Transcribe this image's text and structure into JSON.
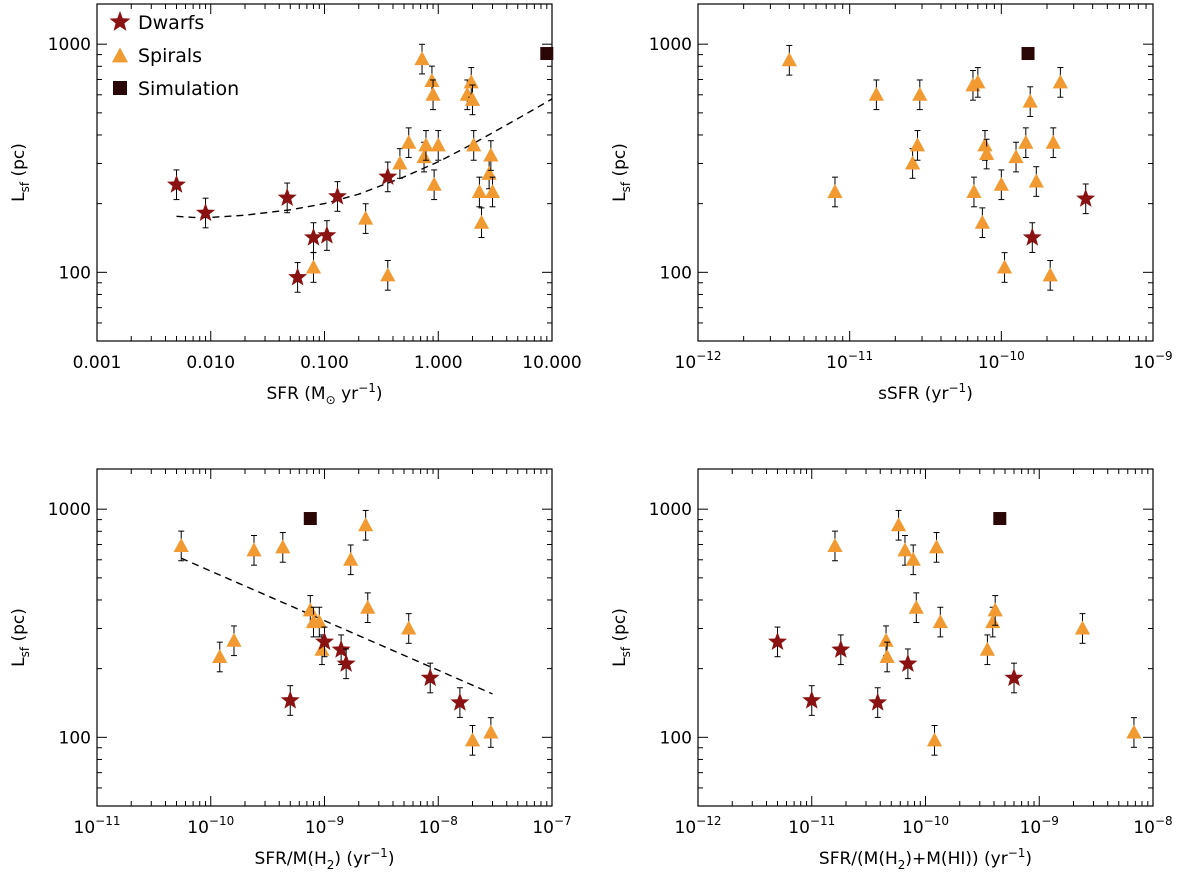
{
  "figure": {
    "legend": {
      "placement": "top-left",
      "entries": [
        {
          "label": "Dwarfs",
          "marker": "star",
          "color": "#8b1212"
        },
        {
          "label": "Spirals",
          "marker": "triangle",
          "color": "#f29a32"
        },
        {
          "label": "Simulation",
          "marker": "square",
          "color": "#2a0606"
        }
      ]
    },
    "colors": {
      "dwarf": "#8b1212",
      "spiral": "#f29a32",
      "simulation": "#2a0606",
      "errorbar": "#000000"
    }
  },
  "chart_data": [
    {
      "type": "scatter",
      "panel": "top-left",
      "xlabel": {
        "main": "SFR (M",
        "sub": "⊙",
        "tail": " yr",
        "sup": "−1",
        "close": ")"
      },
      "ylabel": {
        "main": "L",
        "sub": "sf",
        "tail": " (pc)"
      },
      "xscale": "log",
      "yscale": "log",
      "xlim": [
        0.001,
        10
      ],
      "ylim": [
        50,
        1500
      ],
      "xticks": [
        {
          "v": 0.001,
          "label": "0.001"
        },
        {
          "v": 0.01,
          "label": "0.010"
        },
        {
          "v": 0.1,
          "label": "0.100"
        },
        {
          "v": 1,
          "label": "1.000"
        },
        {
          "v": 10,
          "label": "10.000"
        }
      ],
      "yticks": [
        {
          "v": 100,
          "label": "100"
        },
        {
          "v": 1000,
          "label": "1000"
        }
      ],
      "fit_line": [
        [
          0.005,
          176
        ],
        [
          0.007,
          174
        ],
        [
          0.01,
          174
        ],
        [
          0.02,
          178
        ],
        [
          0.05,
          188
        ],
        [
          0.1,
          200
        ],
        [
          0.2,
          220
        ],
        [
          0.5,
          262
        ],
        [
          1,
          305
        ],
        [
          2,
          365
        ],
        [
          5,
          472
        ],
        [
          10,
          575
        ]
      ],
      "dwarfs": [
        [
          0.005,
          242
        ],
        [
          0.009,
          182
        ],
        [
          0.047,
          212
        ],
        [
          0.058,
          95
        ],
        [
          0.08,
          142
        ],
        [
          0.105,
          145
        ],
        [
          0.13,
          215
        ],
        [
          0.36,
          262
        ]
      ],
      "spirals": [
        [
          0.08,
          105
        ],
        [
          0.23,
          172
        ],
        [
          0.36,
          97
        ],
        [
          0.46,
          300
        ],
        [
          0.55,
          370
        ],
        [
          0.72,
          860
        ],
        [
          0.75,
          320
        ],
        [
          0.78,
          360
        ],
        [
          0.88,
          690
        ],
        [
          0.9,
          600
        ],
        [
          0.92,
          242
        ],
        [
          1.0,
          360
        ],
        [
          1.8,
          600
        ],
        [
          1.95,
          680
        ],
        [
          2.0,
          570
        ],
        [
          2.05,
          360
        ],
        [
          2.3,
          225
        ],
        [
          2.4,
          165
        ],
        [
          2.8,
          270
        ],
        [
          2.9,
          325
        ],
        [
          3.0,
          225
        ]
      ],
      "simulation": [
        [
          9,
          910
        ]
      ]
    },
    {
      "type": "scatter",
      "panel": "top-right",
      "xlabel": {
        "main": "sSFR (yr",
        "sup": "−1",
        "close": ")"
      },
      "ylabel": {
        "main": "L",
        "sub": "sf",
        "tail": " (pc)"
      },
      "xscale": "log",
      "yscale": "log",
      "xlim": [
        1e-12,
        1e-09
      ],
      "ylim": [
        50,
        1500
      ],
      "xticks": [
        {
          "v": 1e-12,
          "base": "10",
          "exp": "−12"
        },
        {
          "v": 1e-11,
          "base": "10",
          "exp": "−11"
        },
        {
          "v": 1e-10,
          "base": "10",
          "exp": "−10"
        },
        {
          "v": 1e-09,
          "base": "10",
          "exp": "−9"
        }
      ],
      "yticks": [
        {
          "v": 100,
          "label": "100"
        },
        {
          "v": 1000,
          "label": "1000"
        }
      ],
      "dwarfs": [
        [
          1.6e-10,
          142
        ],
        [
          3.6e-10,
          210
        ]
      ],
      "spirals": [
        [
          4e-12,
          850
        ],
        [
          8e-12,
          225
        ],
        [
          1.5e-11,
          600
        ],
        [
          2.6e-11,
          300
        ],
        [
          2.8e-11,
          360
        ],
        [
          2.9e-11,
          600
        ],
        [
          6.5e-11,
          660
        ],
        [
          6.6e-11,
          225
        ],
        [
          7e-11,
          680
        ],
        [
          7.5e-11,
          165
        ],
        [
          7.8e-11,
          360
        ],
        [
          8e-11,
          330
        ],
        [
          1e-10,
          242
        ],
        [
          1.05e-10,
          105
        ],
        [
          1.25e-10,
          320
        ],
        [
          1.45e-10,
          370
        ],
        [
          1.55e-10,
          560
        ],
        [
          1.7e-10,
          250
        ],
        [
          2.1e-10,
          97
        ],
        [
          2.2e-10,
          370
        ],
        [
          2.45e-10,
          680
        ]
      ],
      "simulation": [
        [
          1.5e-10,
          910
        ]
      ]
    },
    {
      "type": "scatter",
      "panel": "bottom-left",
      "xlabel": {
        "main": "SFR/M(H",
        "sub": "2",
        "tail": ") (yr",
        "sup": "−1",
        "close": ")"
      },
      "ylabel": {
        "main": "L",
        "sub": "sf",
        "tail": " (pc)"
      },
      "xscale": "log",
      "yscale": "log",
      "xlim": [
        1e-11,
        1e-07
      ],
      "ylim": [
        50,
        1500
      ],
      "xticks": [
        {
          "v": 1e-11,
          "base": "10",
          "exp": "−11"
        },
        {
          "v": 1e-10,
          "base": "10",
          "exp": "−10"
        },
        {
          "v": 1e-09,
          "base": "10",
          "exp": "−9"
        },
        {
          "v": 1e-08,
          "base": "10",
          "exp": "−8"
        },
        {
          "v": 1e-07,
          "base": "10",
          "exp": "−7"
        }
      ],
      "yticks": [
        {
          "v": 100,
          "label": "100"
        },
        {
          "v": 1000,
          "label": "1000"
        }
      ],
      "fit_line": [
        [
          5.5e-11,
          610
        ],
        [
          3e-08,
          155
        ]
      ],
      "dwarfs": [
        [
          5e-10,
          145
        ],
        [
          1e-09,
          262
        ],
        [
          1.4e-09,
          242
        ],
        [
          1.55e-09,
          210
        ],
        [
          8.5e-09,
          182
        ],
        [
          1.55e-08,
          142
        ]
      ],
      "spirals": [
        [
          5.5e-11,
          690
        ],
        [
          1.2e-10,
          225
        ],
        [
          1.6e-10,
          265
        ],
        [
          2.4e-10,
          660
        ],
        [
          4.3e-10,
          680
        ],
        [
          7.5e-10,
          360
        ],
        [
          8e-10,
          320
        ],
        [
          9e-10,
          320
        ],
        [
          9.5e-10,
          242
        ],
        [
          1.7e-09,
          600
        ],
        [
          2.3e-09,
          850
        ],
        [
          2.4e-09,
          370
        ],
        [
          5.5e-09,
          300
        ],
        [
          2e-08,
          97
        ],
        [
          2.9e-08,
          105
        ]
      ],
      "simulation": [
        [
          7.5e-10,
          910
        ]
      ]
    },
    {
      "type": "scatter",
      "panel": "bottom-right",
      "xlabel": {
        "main": "SFR/(M(H",
        "sub": "2",
        "tail": ")+M(HI)) (yr",
        "sup": "−1",
        "close": ")"
      },
      "ylabel": {
        "main": "L",
        "sub": "sf",
        "tail": " (pc)"
      },
      "xscale": "log",
      "yscale": "log",
      "xlim": [
        1e-12,
        1e-08
      ],
      "ylim": [
        50,
        1500
      ],
      "xticks": [
        {
          "v": 1e-12,
          "base": "10",
          "exp": "−12"
        },
        {
          "v": 1e-11,
          "base": "10",
          "exp": "−11"
        },
        {
          "v": 1e-10,
          "base": "10",
          "exp": "−10"
        },
        {
          "v": 1e-09,
          "base": "10",
          "exp": "−9"
        },
        {
          "v": 1e-08,
          "base": "10",
          "exp": "−8"
        }
      ],
      "yticks": [
        {
          "v": 100,
          "label": "100"
        },
        {
          "v": 1000,
          "label": "1000"
        }
      ],
      "dwarfs": [
        [
          5e-12,
          262
        ],
        [
          1e-11,
          145
        ],
        [
          1.8e-11,
          242
        ],
        [
          3.8e-11,
          142
        ],
        [
          7e-11,
          210
        ],
        [
          6e-10,
          182
        ]
      ],
      "spirals": [
        [
          1.6e-11,
          690
        ],
        [
          4.5e-11,
          265
        ],
        [
          4.6e-11,
          225
        ],
        [
          5.8e-11,
          850
        ],
        [
          6.6e-11,
          660
        ],
        [
          7.8e-11,
          600
        ],
        [
          8.3e-11,
          370
        ],
        [
          1.2e-10,
          97
        ],
        [
          1.25e-10,
          680
        ],
        [
          1.35e-10,
          320
        ],
        [
          3.5e-10,
          242
        ],
        [
          3.9e-10,
          320
        ],
        [
          4.1e-10,
          360
        ],
        [
          2.4e-09,
          300
        ],
        [
          6.8e-09,
          105
        ]
      ],
      "simulation": [
        [
          4.5e-10,
          910
        ]
      ]
    }
  ]
}
